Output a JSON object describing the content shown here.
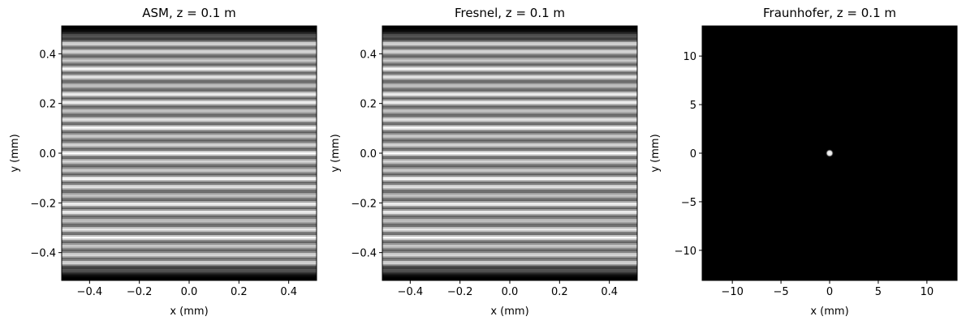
{
  "chart_data": [
    {
      "type": "heatmap",
      "title": "ASM, z = 0.1 m",
      "xlabel": "x (mm)",
      "ylabel": "y (mm)",
      "colormap": "gray",
      "xlim": [
        -0.512,
        0.512
      ],
      "ylim": [
        -0.512,
        0.512
      ],
      "xticks": [
        {
          "value": -0.4,
          "label": "−0.4"
        },
        {
          "value": -0.2,
          "label": "−0.2"
        },
        {
          "value": 0,
          "label": "0.0"
        },
        0.2,
        0.4
      ],
      "yticks": [
        {
          "value": -0.4,
          "label": "−0.4"
        },
        {
          "value": -0.2,
          "label": "−0.2"
        },
        {
          "value": 0,
          "label": "0.0"
        },
        0.2,
        0.4
      ]
    },
    {
      "type": "heatmap",
      "title": "Fresnel, z = 0.1 m",
      "xlabel": "x (mm)",
      "ylabel": "y (mm)",
      "colormap": "gray",
      "xlim": [
        -0.512,
        0.512
      ],
      "ylim": [
        -0.512,
        0.512
      ],
      "xticks": [
        {
          "value": -0.4,
          "label": "−0.4"
        },
        {
          "value": -0.2,
          "label": "−0.2"
        },
        {
          "value": 0,
          "label": "0.0"
        },
        0.2,
        0.4
      ],
      "yticks": [
        {
          "value": -0.4,
          "label": "−0.4"
        },
        {
          "value": -0.2,
          "label": "−0.2"
        },
        {
          "value": 0,
          "label": "0.0"
        },
        0.2,
        0.4
      ]
    },
    {
      "type": "heatmap",
      "title": "Fraunhofer, z = 0.1 m",
      "xlabel": "x (mm)",
      "ylabel": "y (mm)",
      "colormap": "gray",
      "xlim": [
        -13.1,
        13.1
      ],
      "ylim": [
        -13.1,
        13.1
      ],
      "xticks": [
        {
          "value": -10,
          "label": "−10"
        },
        {
          "value": -5,
          "label": "−5"
        },
        0,
        5,
        10
      ],
      "yticks": [
        {
          "value": -10,
          "label": "−10"
        },
        {
          "value": -5,
          "label": "−5"
        },
        0,
        5,
        10
      ]
    }
  ]
}
